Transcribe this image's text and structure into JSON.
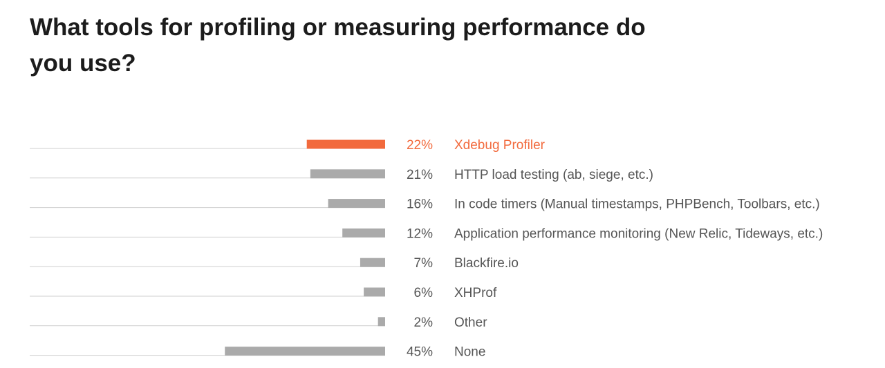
{
  "chart_data": {
    "type": "bar",
    "orientation": "horizontal",
    "title": "What tools for profiling or measuring performance do you use?",
    "xlim": [
      0,
      100
    ],
    "grid": false,
    "legend": "none",
    "highlight_color": "#f26a3d",
    "bar_color": "#aaaaaa",
    "baseline_color": "#cfcfcf",
    "label_color": "#555555",
    "categories": [
      "Xdebug Profiler",
      "HTTP load testing (ab, siege, etc.)",
      "In code timers (Manual timestamps, PHPBench, Toolbars, etc.)",
      "Application performance monitoring (New Relic, Tideways, etc.)",
      "Blackfire.io",
      "XHProf",
      "Other",
      "None"
    ],
    "values": [
      22,
      21,
      16,
      12,
      7,
      6,
      2,
      45
    ],
    "value_labels": [
      "22%",
      "21%",
      "16%",
      "12%",
      "7%",
      "6%",
      "2%",
      "45%"
    ],
    "highlighted_index": 0
  }
}
